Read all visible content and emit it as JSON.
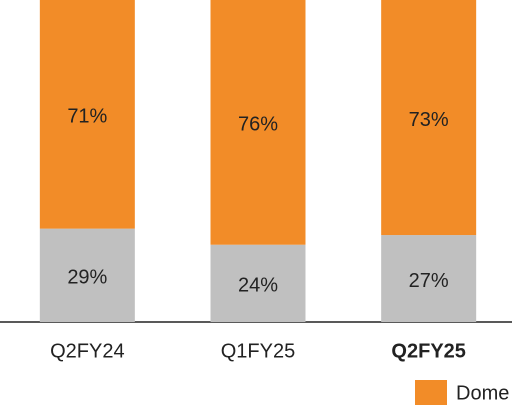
{
  "chart_data": {
    "type": "stacked_bar",
    "categories": [
      "Q2FY24",
      "Q1FY25",
      "Q2FY25"
    ],
    "bold_categories": [
      false,
      false,
      true
    ],
    "series": [
      {
        "color": "#c0c0c0",
        "values": [
          29,
          24,
          27
        ],
        "value_labels": [
          "29%",
          "24%",
          "27%"
        ]
      },
      {
        "name": "Dome",
        "color": "#f28c28",
        "values": [
          71,
          76,
          73
        ],
        "value_labels": [
          "71%",
          "76%",
          "73%"
        ]
      }
    ],
    "ylim": [
      0,
      100
    ]
  }
}
